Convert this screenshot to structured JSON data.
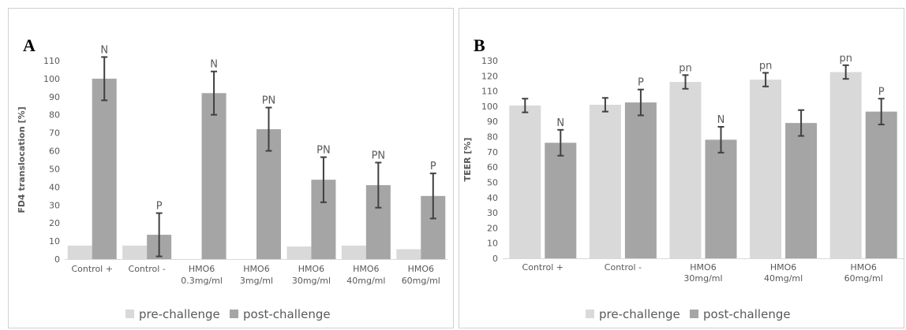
{
  "colors": {
    "pre": "#d9d9d9",
    "post": "#a5a5a5",
    "axis": "#d9d9d9",
    "error": "#404040",
    "text": "#595959"
  },
  "legend": {
    "pre_label": "pre-challenge",
    "post_label": "post-challenge",
    "position": "bottom"
  },
  "chart_data": [
    {
      "panel": "A",
      "type": "bar",
      "ylabel": "FD4 translocation [%]",
      "ylim": [
        0,
        110
      ],
      "ytick_step": 10,
      "categories": [
        [
          "Control +"
        ],
        [
          "Control -"
        ],
        [
          "HMO6",
          "0.3mg/ml"
        ],
        [
          "HMO6",
          "3mg/ml"
        ],
        [
          "HMO6",
          "30mg/ml"
        ],
        [
          "HMO6",
          "40mg/ml"
        ],
        [
          "HMO6",
          "60mg/ml"
        ]
      ],
      "series": [
        {
          "name": "pre-challenge",
          "values": [
            7.5,
            7.5,
            0,
            0,
            7,
            7.5,
            5.5
          ],
          "errors": [
            0,
            0,
            0,
            0,
            0,
            0,
            0
          ],
          "labels": [
            "",
            "",
            "",
            "",
            "",
            "",
            ""
          ]
        },
        {
          "name": "post-challenge",
          "values": [
            100,
            13.5,
            92,
            72,
            44,
            41,
            35
          ],
          "errors": [
            12,
            12,
            12,
            12,
            12.5,
            12.5,
            12.5
          ],
          "labels": [
            "N",
            "P",
            "N",
            "PN",
            "PN",
            "PN",
            "P"
          ]
        }
      ]
    },
    {
      "panel": "B",
      "type": "bar",
      "ylabel": "TEER [%]",
      "ylim": [
        0,
        130
      ],
      "ytick_step": 10,
      "categories": [
        [
          "Control +"
        ],
        [
          "Control -"
        ],
        [
          "HMO6",
          "30mg/ml"
        ],
        [
          "HMO6",
          "40mg/ml"
        ],
        [
          "HMO6",
          "60mg/ml"
        ]
      ],
      "series": [
        {
          "name": "pre-challenge",
          "values": [
            100.5,
            101,
            116,
            117.5,
            122.5
          ],
          "errors": [
            4.5,
            4.5,
            4.5,
            4.5,
            4.5
          ],
          "labels": [
            "",
            "",
            "pn",
            "pn",
            "pn"
          ]
        },
        {
          "name": "post-challenge",
          "values": [
            76,
            102.5,
            78,
            89,
            96.5
          ],
          "errors": [
            8.5,
            8.5,
            8.5,
            8.5,
            8.5
          ],
          "labels": [
            "N",
            "P",
            "N",
            "",
            "P"
          ]
        }
      ]
    }
  ]
}
